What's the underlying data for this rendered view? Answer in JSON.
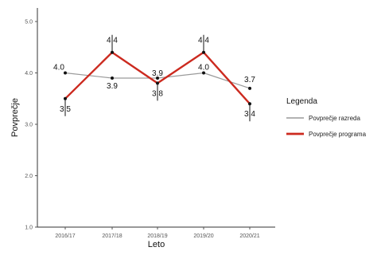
{
  "chart_data": {
    "type": "line",
    "categories": [
      "2016/17",
      "2017/18",
      "2018/19",
      "2019/20",
      "2020/21"
    ],
    "xlabel": "Leto",
    "ylabel": "Povprečje",
    "ylim": [
      1.0,
      5.0
    ],
    "yticks": [
      "1.0",
      "2.0",
      "3.0",
      "4.0",
      "5.0"
    ],
    "grid": false,
    "legend": {
      "title": "Legenda",
      "placement": "right"
    },
    "series": [
      {
        "name": "Povprečje razreda",
        "color": "#9a9a9a",
        "values": [
          4.0,
          3.9,
          3.9,
          4.0,
          3.7
        ],
        "labels": [
          "4.0",
          "3.9",
          "3.9",
          "4.0",
          "3.7"
        ]
      },
      {
        "name": "Povprečje programa",
        "color": "#cc2a1f",
        "values": [
          3.5,
          4.4,
          3.8,
          4.4,
          3.4
        ],
        "labels": [
          "3.5",
          "4.4",
          "3.8",
          "4.4",
          "3.4"
        ]
      }
    ]
  }
}
